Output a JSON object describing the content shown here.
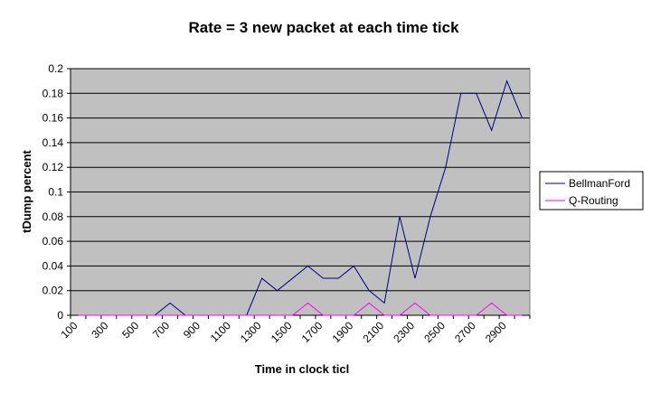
{
  "chart_data": {
    "type": "line",
    "title": "Rate = 3 new packet at each time tick",
    "xlabel": "Time in clock ticl",
    "ylabel": "tDump percent",
    "ylim": [
      0,
      0.2
    ],
    "y_ticks": [
      "0",
      "0.02",
      "0.04",
      "0.06",
      "0.08",
      "0.1",
      "0.12",
      "0.14",
      "0.16",
      "0.18",
      "0.2"
    ],
    "x_tick_labels": [
      "100",
      "300",
      "500",
      "700",
      "900",
      "1100",
      "1300",
      "1500",
      "1700",
      "1900",
      "2100",
      "2300",
      "2500",
      "2700",
      "2900"
    ],
    "x": [
      100,
      200,
      300,
      400,
      500,
      600,
      700,
      800,
      900,
      1000,
      1100,
      1200,
      1300,
      1400,
      1500,
      1600,
      1700,
      1800,
      1900,
      2000,
      2100,
      2200,
      2300,
      2400,
      2500,
      2600,
      2700,
      2800,
      2900,
      3000
    ],
    "series": [
      {
        "name": "BellmanFord",
        "color": "#000080",
        "values": [
          0,
          0,
          0,
          0,
          0,
          0,
          0.01,
          0,
          0,
          0,
          0,
          0,
          0.03,
          0.02,
          0.03,
          0.04,
          0.03,
          0.03,
          0.04,
          0.02,
          0.01,
          0.08,
          0.03,
          0.08,
          0.12,
          0.18,
          0.18,
          0.15,
          0.19,
          0.16
        ]
      },
      {
        "name": "Q-Routing",
        "color": "#ff00ff",
        "values": [
          0,
          0,
          0,
          0,
          0,
          0,
          0,
          0,
          0,
          0,
          0,
          0,
          0,
          0,
          0,
          0.01,
          0,
          0,
          0,
          0.01,
          0,
          0,
          0.01,
          0,
          0,
          0,
          0,
          0.01,
          0,
          0
        ]
      }
    ],
    "plot_background": "#c0c0c0",
    "grid": true,
    "legend_position": "right"
  }
}
